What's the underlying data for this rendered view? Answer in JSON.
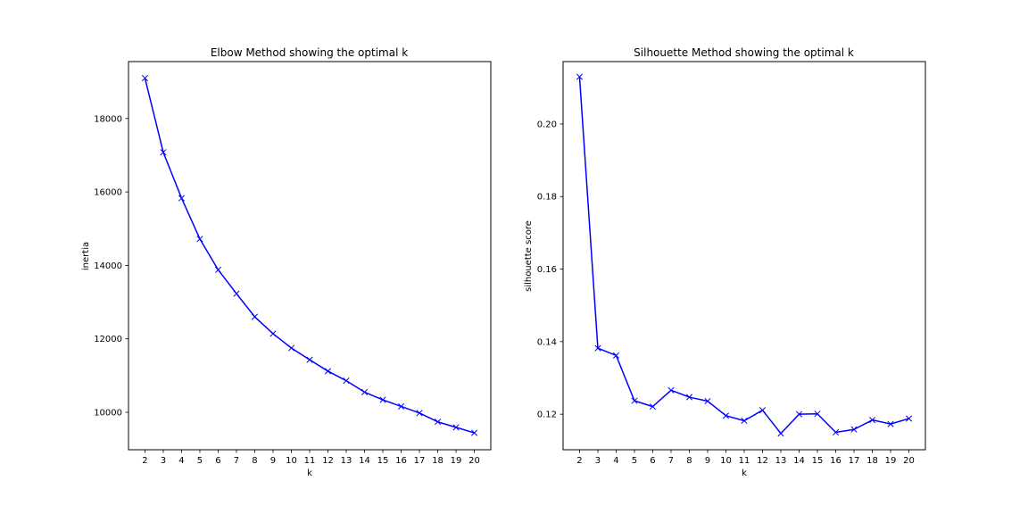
{
  "chart_data": [
    {
      "type": "line",
      "title": "Elbow Method showing the optimal k",
      "xlabel": "k",
      "ylabel": "inertia",
      "x": [
        2,
        3,
        4,
        5,
        6,
        7,
        8,
        9,
        10,
        11,
        12,
        13,
        14,
        15,
        16,
        17,
        18,
        19,
        20
      ],
      "series": [
        {
          "values": [
            19100,
            17080,
            15830,
            14720,
            13880,
            13230,
            12600,
            12140,
            11750,
            11430,
            11120,
            10860,
            10550,
            10340,
            10160,
            9980,
            9740,
            9590,
            9440
          ],
          "color": "#0000ff",
          "marker": "x"
        }
      ],
      "xlim": [
        1.1,
        20.9
      ],
      "ylim": [
        8980,
        19550
      ],
      "xticks": [
        "2",
        "3",
        "4",
        "5",
        "6",
        "7",
        "8",
        "9",
        "10",
        "11",
        "12",
        "13",
        "14",
        "15",
        "16",
        "17",
        "18",
        "19",
        "20"
      ],
      "yticks": [
        10000,
        12000,
        14000,
        16000,
        18000
      ],
      "ytick_labels": [
        "10000",
        "12000",
        "14000",
        "16000",
        "18000"
      ],
      "grid": false,
      "legend": "none"
    },
    {
      "type": "line",
      "title": "Silhouette Method showing the optimal k",
      "xlabel": "k",
      "ylabel": "silhouette score",
      "x": [
        2,
        3,
        4,
        5,
        6,
        7,
        8,
        9,
        10,
        11,
        12,
        13,
        14,
        15,
        16,
        17,
        18,
        19,
        20
      ],
      "series": [
        {
          "values": [
            0.213,
            0.1382,
            0.1362,
            0.1237,
            0.1221,
            0.1266,
            0.1247,
            0.1236,
            0.1196,
            0.1182,
            0.1211,
            0.1147,
            0.12,
            0.1201,
            0.115,
            0.1158,
            0.1184,
            0.1173,
            0.1188
          ],
          "color": "#0000ff",
          "marker": "x"
        }
      ],
      "xlim": [
        1.1,
        20.9
      ],
      "ylim": [
        0.1102,
        0.2172
      ],
      "xticks": [
        "2",
        "3",
        "4",
        "5",
        "6",
        "7",
        "8",
        "9",
        "10",
        "11",
        "12",
        "13",
        "14",
        "15",
        "16",
        "17",
        "18",
        "19",
        "20"
      ],
      "yticks": [
        0.12,
        0.14,
        0.16,
        0.18,
        0.2
      ],
      "ytick_labels": [
        "0.12",
        "0.14",
        "0.16",
        "0.18",
        "0.20"
      ],
      "grid": false,
      "legend": "none"
    }
  ]
}
